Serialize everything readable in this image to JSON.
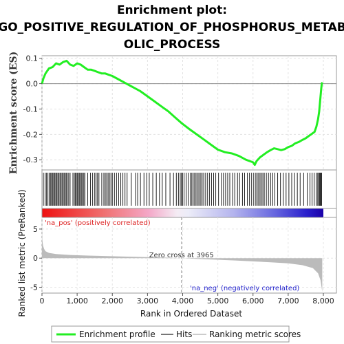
{
  "title_lines": [
    "Enrichment plot:",
    "GO_POSITIVE_REGULATION_OF_PHOSPHORUS_METAB",
    "OLIC_PROCESS"
  ],
  "chart_data": {
    "type": "line",
    "title": "Enrichment plot: GO_POSITIVE_REGULATION_OF_PHOSPHORUS_METABOLIC_PROCESS",
    "es_panel": {
      "ylabel": "Enrichment score (ES)",
      "ylim": [
        -0.34,
        0.11
      ],
      "yticks": [
        0.1,
        0.0,
        -0.1,
        -0.2,
        -0.3
      ],
      "ytick_labels": [
        "0.1",
        "0.0",
        "-0.1",
        "-0.2",
        "-0.3"
      ],
      "grid": true,
      "color": "#22ee22",
      "series": [
        {
          "name": "Enrichment profile",
          "x": [
            0,
            40,
            100,
            200,
            300,
            400,
            500,
            600,
            700,
            800,
            900,
            1000,
            1100,
            1200,
            1300,
            1400,
            1500,
            1600,
            1700,
            1800,
            1900,
            2000,
            2200,
            2400,
            2600,
            2800,
            3000,
            3200,
            3400,
            3600,
            3800,
            3965,
            4200,
            4400,
            4600,
            4800,
            5000,
            5200,
            5400,
            5600,
            5800,
            6000,
            6050,
            6100,
            6200,
            6300,
            6400,
            6500,
            6600,
            6700,
            6800,
            6900,
            7000,
            7100,
            7200,
            7300,
            7400,
            7500,
            7600,
            7650,
            7700,
            7750,
            7800,
            7850,
            7880,
            7900,
            7920,
            7940,
            7955,
            7968
          ],
          "y": [
            0.0,
            0.02,
            0.04,
            0.06,
            0.065,
            0.08,
            0.075,
            0.085,
            0.09,
            0.075,
            0.07,
            0.08,
            0.075,
            0.065,
            0.055,
            0.055,
            0.05,
            0.045,
            0.04,
            0.04,
            0.035,
            0.03,
            0.015,
            0.0,
            -0.015,
            -0.03,
            -0.05,
            -0.07,
            -0.09,
            -0.11,
            -0.135,
            -0.155,
            -0.18,
            -0.2,
            -0.22,
            -0.24,
            -0.26,
            -0.27,
            -0.275,
            -0.285,
            -0.3,
            -0.31,
            -0.32,
            -0.305,
            -0.29,
            -0.28,
            -0.27,
            -0.262,
            -0.255,
            -0.258,
            -0.262,
            -0.258,
            -0.25,
            -0.245,
            -0.235,
            -0.23,
            -0.222,
            -0.215,
            -0.205,
            -0.2,
            -0.195,
            -0.19,
            -0.17,
            -0.14,
            -0.11,
            -0.08,
            -0.05,
            -0.02,
            0.0,
            0.005
          ]
        }
      ]
    },
    "hits_panel": {
      "label": "Hits",
      "positions": [
        40,
        90,
        130,
        170,
        210,
        240,
        270,
        300,
        330,
        360,
        390,
        420,
        450,
        480,
        510,
        540,
        570,
        600,
        630,
        660,
        690,
        720,
        760,
        800,
        880,
        920,
        950,
        980,
        1010,
        1040,
        1070,
        1100,
        1130,
        1160,
        1190,
        1220,
        1300,
        1380,
        1440,
        1500,
        1540,
        1580,
        1620,
        1700,
        1760,
        1800,
        1840,
        1880,
        1920,
        1960,
        2000,
        2060,
        2120,
        2180,
        2240,
        2300,
        2360,
        2420,
        2540,
        2660,
        2720,
        2800,
        2900,
        2980,
        3050,
        3150,
        3250,
        3340,
        3420,
        3520,
        3640,
        3740,
        3820,
        3880,
        3930,
        3960,
        4000,
        4040,
        4100,
        4160,
        4220,
        4260,
        4300,
        4340,
        4380,
        4420,
        4460,
        4500,
        4540,
        4580,
        4640,
        4700,
        4760,
        4820,
        4880,
        4940,
        5020,
        5100,
        5160,
        5220,
        5280,
        5340,
        5420,
        5480,
        5560,
        5620,
        5700,
        5760,
        5840,
        5900,
        5960,
        6020,
        6080,
        6120,
        6160,
        6200,
        6240,
        6280,
        6320,
        6380,
        6440,
        6500,
        6560,
        6620,
        6700,
        6780,
        6860,
        6940,
        7020,
        7100,
        7180,
        7260,
        7340,
        7440,
        7540,
        7620,
        7680,
        7740,
        7800,
        7840,
        7870,
        7890,
        7910,
        7930,
        7950
      ]
    },
    "metric_panel": {
      "ylabel": "Ranked list metric (PreRanked)",
      "xlabel": "Rank in Ordered Dataset",
      "xlim": [
        0,
        8000
      ],
      "xticks": [
        0,
        1000,
        2000,
        3000,
        4000,
        5000,
        6000,
        7000,
        8000
      ],
      "xtick_labels": [
        "0",
        "1,000",
        "2,000",
        "3,000",
        "4,000",
        "5,000",
        "6,000",
        "7,000",
        "8,000"
      ],
      "ylim": [
        -6,
        7
      ],
      "yticks": [
        5,
        0,
        -5
      ],
      "ytick_labels": [
        "5",
        "0",
        "-5"
      ],
      "zero_cross_label": "Zero cross at 3965",
      "zero_cross": 3965,
      "pos_label": "'na_pos' (positively correlated)",
      "neg_label": "'na_neg' (negatively correlated)",
      "pos_color": "#dd2222",
      "neg_color": "#2222cc",
      "x": [
        0,
        10,
        30,
        60,
        100,
        200,
        400,
        800,
        1500,
        2500,
        3500,
        3965,
        4500,
        5500,
        6500,
        7000,
        7400,
        7700,
        7850,
        7920,
        7950,
        7968
      ],
      "values": [
        5.0,
        3.2,
        2.2,
        1.6,
        1.2,
        0.9,
        0.7,
        0.55,
        0.4,
        0.25,
        0.1,
        0.0,
        -0.15,
        -0.4,
        -0.7,
        -0.9,
        -1.2,
        -1.7,
        -2.6,
        -3.8,
        -5.0,
        -5.8
      ],
      "color": "#bbbbbb"
    },
    "legend": {
      "placement": "bottom",
      "items": [
        {
          "label": "Enrichment profile",
          "color": "#22ee22"
        },
        {
          "label": "Hits",
          "color": "#777777"
        },
        {
          "label": "Ranking metric scores",
          "color": "#cccccc"
        }
      ]
    }
  }
}
